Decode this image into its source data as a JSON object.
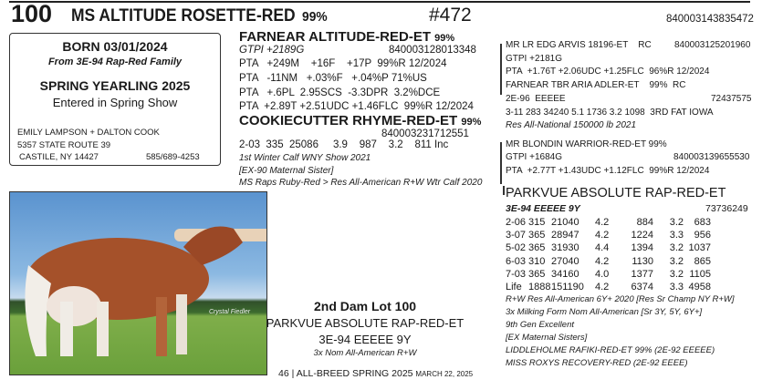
{
  "lot": {
    "number": "100",
    "name": "MS ALTITUDE ROSETTE-RED",
    "percent": "99%",
    "catalog_no": "#472",
    "registration": "840003143835472"
  },
  "info_box": {
    "born": "BORN 03/01/2024",
    "family": "From 3E-94 Rap-Red Family",
    "class": "SPRING YEARLING 2025",
    "show": "Entered in Spring Show",
    "consignor": "EMILY LAMPSON + DALTON COOK",
    "address": "5357 STATE ROUTE 39",
    "city": "CASTILE, NY  14427",
    "phone": "585/689-4253"
  },
  "sire": {
    "name": "FARNEAR ALTITUDE-RED-ET",
    "percent": "99%",
    "gtpi": "GTPI +2189G",
    "registration": "840003128013348",
    "pta": [
      "PTA   +249M    +16F    +17P  99%R 12/2024",
      "PTA   -11NM   +.03%F   +.04%P 71%US",
      "PTA   +.6PL  2.95SCS  -3.3DPR  3.2%DCE",
      "PTA  +2.89T +2.51UDC +1.46FLC  99%R 12/2024"
    ]
  },
  "dam": {
    "name": "COOKIECUTTER RHYME-RED-ET",
    "percent": "99%",
    "registration": "840003231712551",
    "record": "2-03  335  25086     3.9    987    3.2    811 Inc",
    "notes": [
      "1st Winter Calf WNY Show 2021",
      "[EX-90 Maternal Sister]",
      "MS Raps Ruby-Red >  Res All-American R+W Wtr Calf 2020"
    ]
  },
  "sire_sire": {
    "name": "MR LR EDG ARVIS 18196-ET    RC",
    "registration": "840003125201960",
    "gtpi": "GTPI +2181G",
    "pta": "PTA  +1.76T +2.06UDC +1.25FLC  96%R 12/2024"
  },
  "sire_dam": {
    "name": "FARNEAR TBR ARIA ADLER-ET    99%  RC",
    "classification": "2E-96  EEEEE",
    "registration": "72437575",
    "record": "3-11 283 34240 5.1 1736 3.2 1098  3RD FAT IOWA",
    "note": "Res All-National 150000 lb 2021"
  },
  "dam_sire": {
    "name": "MR BLONDIN WARRIOR-RED-ET  99%",
    "gtpi": "GTPI +1684G",
    "registration": "840003139655530",
    "pta": "PTA  +2.77T +1.43UDC +1.12FLC  99%R 12/2024"
  },
  "second_dam": {
    "name": "PARKVUE ABSOLUTE RAP-RED-ET",
    "classification": "3E-94 EEEEE 9Y",
    "registration": "73736249",
    "records": [
      [
        "2-06",
        "315",
        "21040",
        "4.2",
        "884",
        "3.2",
        "683"
      ],
      [
        "3-07",
        "365",
        "28947",
        "4.2",
        "1224",
        "3.3",
        "956"
      ],
      [
        "5-02",
        "365",
        "31930",
        "4.4",
        "1394",
        "3.2",
        "1037"
      ],
      [
        "6-03",
        "310",
        "27040",
        "4.2",
        "1130",
        "3.2",
        "865"
      ],
      [
        "7-03",
        "365",
        "34160",
        "4.0",
        "1377",
        "3.2",
        "1105"
      ],
      [
        "Life",
        "1888",
        "151190",
        "4.2",
        "6374",
        "3.3",
        "4958"
      ]
    ],
    "notes": [
      "R+W Res All-American 6Y+ 2020 [Res Sr Champ NY R+W]",
      "3x Milking Form Nom All-American  [Sr 3Y, 5Y, 6Y+]",
      "9th Gen Excellent",
      "[EX Maternal Sisters]",
      "LIDDLEHOLME RAFIKI-RED-ET 99%  (2E-92 EEEEE)",
      "MISS ROXYS RECOVERY-RED    (2E-92 EEEE)"
    ]
  },
  "photo": {
    "signature": "Crystal Fiedler"
  },
  "caption": {
    "title": "2nd Dam Lot 100",
    "name": "PARKVUE ABSOLUTE RAP-RED-ET",
    "classification": "3E-94 EEEEE 9Y",
    "note": "3x Nom All-American R+W"
  },
  "footer": {
    "page": "46",
    "separator": "|",
    "publication": "ALL-BREED SPRING 2025",
    "date": "MARCH 22, 2025"
  }
}
